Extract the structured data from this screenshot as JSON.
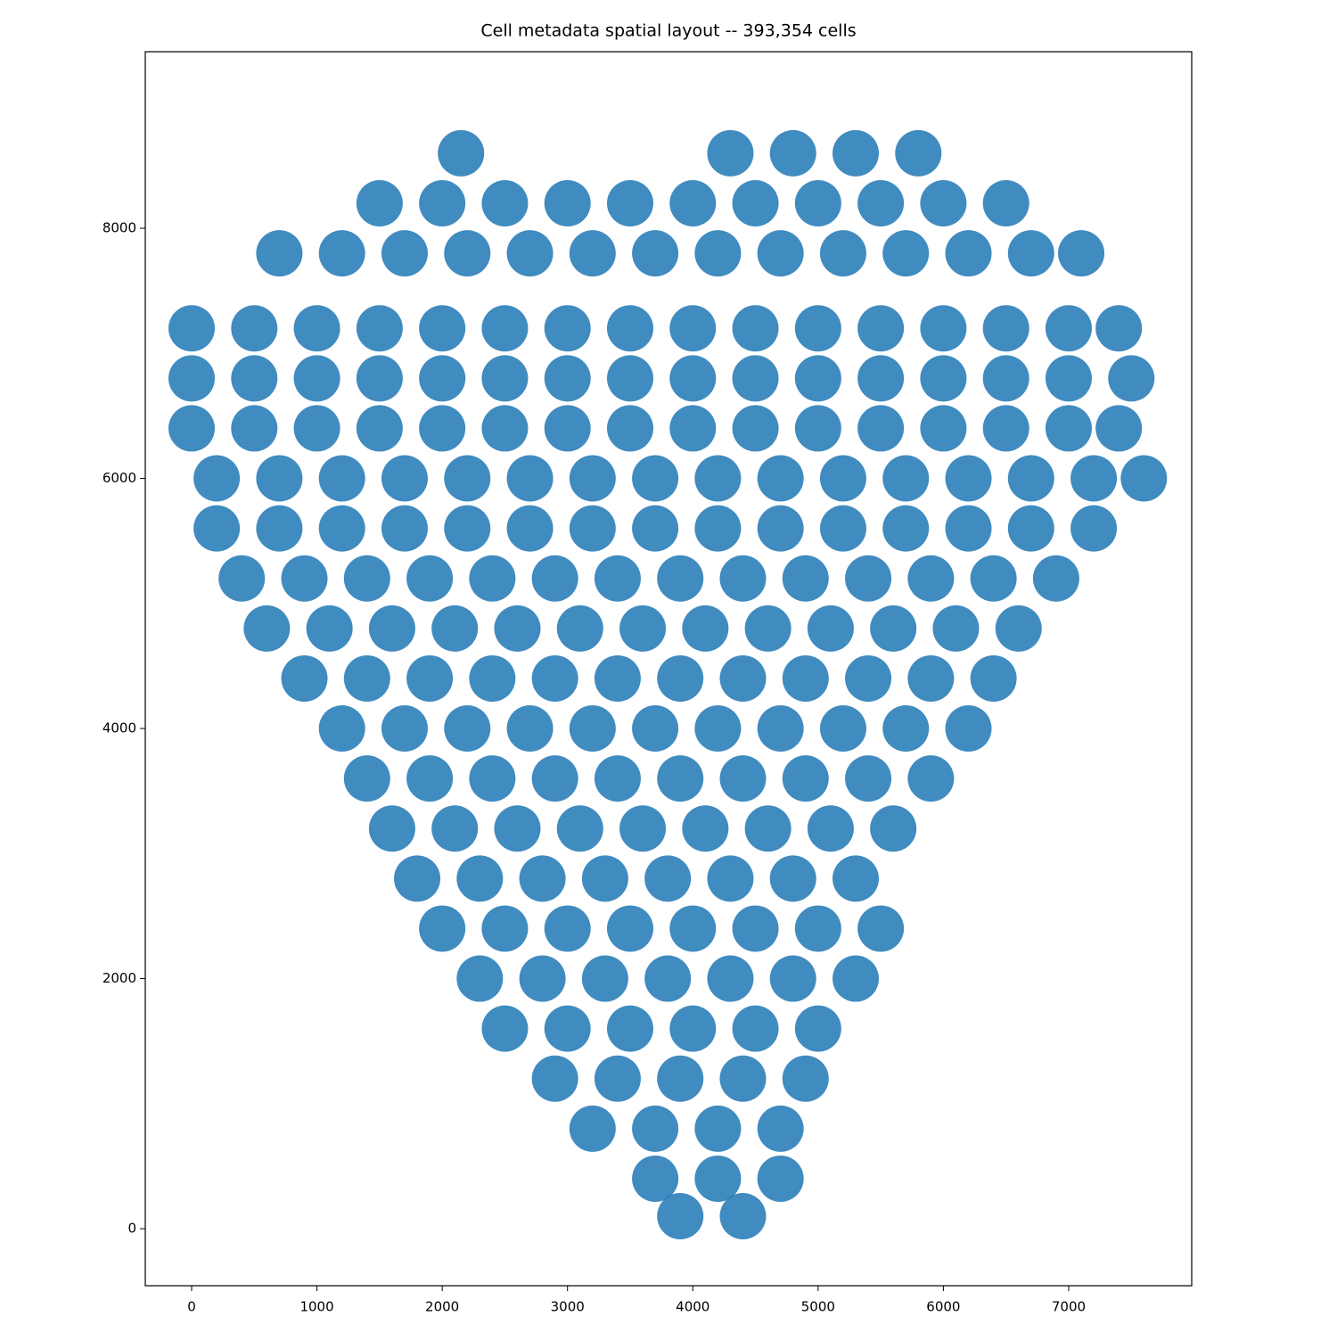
{
  "chart_data": {
    "type": "scatter",
    "title": "Cell metadata spatial layout -- 393,354 cells",
    "color": "#1f77b4",
    "xlim": [
      -370,
      7982
    ],
    "ylim": [
      -456,
      9412
    ],
    "xticks": [
      0,
      1000,
      2000,
      3000,
      4000,
      5000,
      6000,
      7000
    ],
    "yticks": [
      0,
      2000,
      4000,
      6000,
      8000
    ],
    "x": [
      2150,
      4300,
      4800,
      5300,
      5800,
      1500,
      2000,
      2500,
      3000,
      3500,
      4000,
      4500,
      5000,
      5500,
      6000,
      6500,
      700,
      1200,
      1700,
      2200,
      2700,
      3200,
      3700,
      4200,
      4700,
      5200,
      5700,
      6200,
      6700,
      7100,
      0,
      500,
      1000,
      1500,
      2000,
      2500,
      3000,
      3500,
      4000,
      4500,
      5000,
      5500,
      6000,
      6500,
      7000,
      7400,
      0,
      500,
      1000,
      1500,
      2000,
      2500,
      3000,
      3500,
      4000,
      4500,
      5000,
      5500,
      6000,
      6500,
      7000,
      7500,
      0,
      500,
      1000,
      1500,
      2000,
      2500,
      3000,
      3500,
      4000,
      4500,
      5000,
      5500,
      6000,
      6500,
      7000,
      7400,
      200,
      700,
      1200,
      1700,
      2200,
      2700,
      3200,
      3700,
      4200,
      4700,
      5200,
      5700,
      6200,
      6700,
      7200,
      7600,
      200,
      700,
      1200,
      1700,
      2200,
      2700,
      3200,
      3700,
      4200,
      4700,
      5200,
      5700,
      6200,
      6700,
      7200,
      400,
      900,
      1400,
      1900,
      2400,
      2900,
      3400,
      3900,
      4400,
      4900,
      5400,
      5900,
      6400,
      6900,
      600,
      1100,
      1600,
      2100,
      2600,
      3100,
      3600,
      4100,
      4600,
      5100,
      5600,
      6100,
      6600,
      900,
      1400,
      1900,
      2400,
      2900,
      3400,
      3900,
      4400,
      4900,
      5400,
      5900,
      6400,
      1200,
      1700,
      2200,
      2700,
      3200,
      3700,
      4200,
      4700,
      5200,
      5700,
      6200,
      1400,
      1900,
      2400,
      2900,
      3400,
      3900,
      4400,
      4900,
      5400,
      5900,
      1600,
      2100,
      2600,
      3100,
      3600,
      4100,
      4600,
      5100,
      5600,
      1800,
      2300,
      2800,
      3300,
      3800,
      4300,
      4800,
      5300,
      2000,
      2500,
      3000,
      3500,
      4000,
      4500,
      5000,
      5500,
      2300,
      2800,
      3300,
      3800,
      4300,
      4800,
      5300,
      2500,
      3000,
      3500,
      4000,
      4500,
      5000,
      2900,
      3400,
      3900,
      4400,
      4900,
      3200,
      3700,
      4200,
      4700,
      3700,
      4200,
      4700,
      3900,
      4400
    ],
    "values": [
      8600,
      8600,
      8600,
      8600,
      8600,
      8200,
      8200,
      8200,
      8200,
      8200,
      8200,
      8200,
      8200,
      8200,
      8200,
      8200,
      7800,
      7800,
      7800,
      7800,
      7800,
      7800,
      7800,
      7800,
      7800,
      7800,
      7800,
      7800,
      7800,
      7800,
      7200,
      7200,
      7200,
      7200,
      7200,
      7200,
      7200,
      7200,
      7200,
      7200,
      7200,
      7200,
      7200,
      7200,
      7200,
      7200,
      6800,
      6800,
      6800,
      6800,
      6800,
      6800,
      6800,
      6800,
      6800,
      6800,
      6800,
      6800,
      6800,
      6800,
      6800,
      6800,
      6400,
      6400,
      6400,
      6400,
      6400,
      6400,
      6400,
      6400,
      6400,
      6400,
      6400,
      6400,
      6400,
      6400,
      6400,
      6400,
      6000,
      6000,
      6000,
      6000,
      6000,
      6000,
      6000,
      6000,
      6000,
      6000,
      6000,
      6000,
      6000,
      6000,
      6000,
      6000,
      5600,
      5600,
      5600,
      5600,
      5600,
      5600,
      5600,
      5600,
      5600,
      5600,
      5600,
      5600,
      5600,
      5600,
      5600,
      5200,
      5200,
      5200,
      5200,
      5200,
      5200,
      5200,
      5200,
      5200,
      5200,
      5200,
      5200,
      5200,
      5200,
      4800,
      4800,
      4800,
      4800,
      4800,
      4800,
      4800,
      4800,
      4800,
      4800,
      4800,
      4800,
      4800,
      4400,
      4400,
      4400,
      4400,
      4400,
      4400,
      4400,
      4400,
      4400,
      4400,
      4400,
      4400,
      4000,
      4000,
      4000,
      4000,
      4000,
      4000,
      4000,
      4000,
      4000,
      4000,
      4000,
      3600,
      3600,
      3600,
      3600,
      3600,
      3600,
      3600,
      3600,
      3600,
      3600,
      3200,
      3200,
      3200,
      3200,
      3200,
      3200,
      3200,
      3200,
      3200,
      2800,
      2800,
      2800,
      2800,
      2800,
      2800,
      2800,
      2800,
      2400,
      2400,
      2400,
      2400,
      2400,
      2400,
      2400,
      2400,
      2000,
      2000,
      2000,
      2000,
      2000,
      2000,
      2000,
      1600,
      1600,
      1600,
      1600,
      1600,
      1600,
      1200,
      1200,
      1200,
      1200,
      1200,
      800,
      800,
      800,
      800,
      400,
      400,
      400,
      100,
      100
    ]
  }
}
